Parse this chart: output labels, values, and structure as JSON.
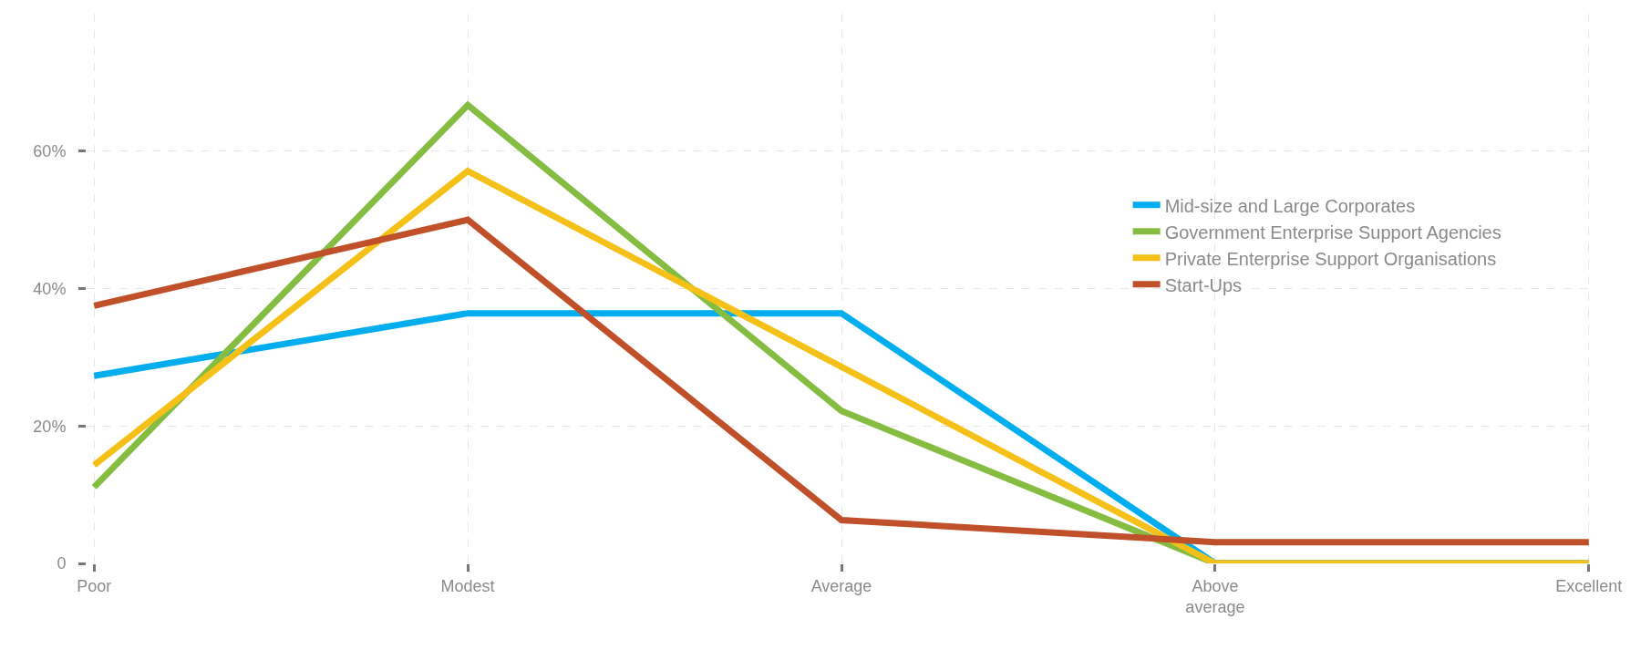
{
  "chart_data": {
    "type": "line",
    "categories": [
      "Poor",
      "Modest",
      "Average",
      "Above\naverage",
      "Excellent"
    ],
    "series": [
      {
        "name": "Mid-size and Large Corporates",
        "color": "#00aeef",
        "values": [
          27.3,
          36.4,
          36.4,
          0,
          0
        ]
      },
      {
        "name": "Government Enterprise Support Agencies",
        "color": "#84bd41",
        "values": [
          11.1,
          66.7,
          22.2,
          0,
          0
        ]
      },
      {
        "name": "Private Enterprise Support Organisations",
        "color": "#f5c118",
        "values": [
          14.3,
          57.1,
          28.6,
          0,
          0
        ]
      },
      {
        "name": "Start-Ups",
        "color": "#c0502a",
        "values": [
          37.5,
          50,
          6.3,
          3.1,
          3.1
        ]
      }
    ],
    "ylim": [
      0,
      80
    ],
    "yticks": [
      0,
      {
        "value": 20,
        "label": "20%"
      },
      {
        "value": 40,
        "label": "40%"
      },
      {
        "value": 60,
        "label": "60%"
      }
    ],
    "grid": true,
    "legend": "right",
    "marker": "none",
    "line_style": "solid"
  }
}
